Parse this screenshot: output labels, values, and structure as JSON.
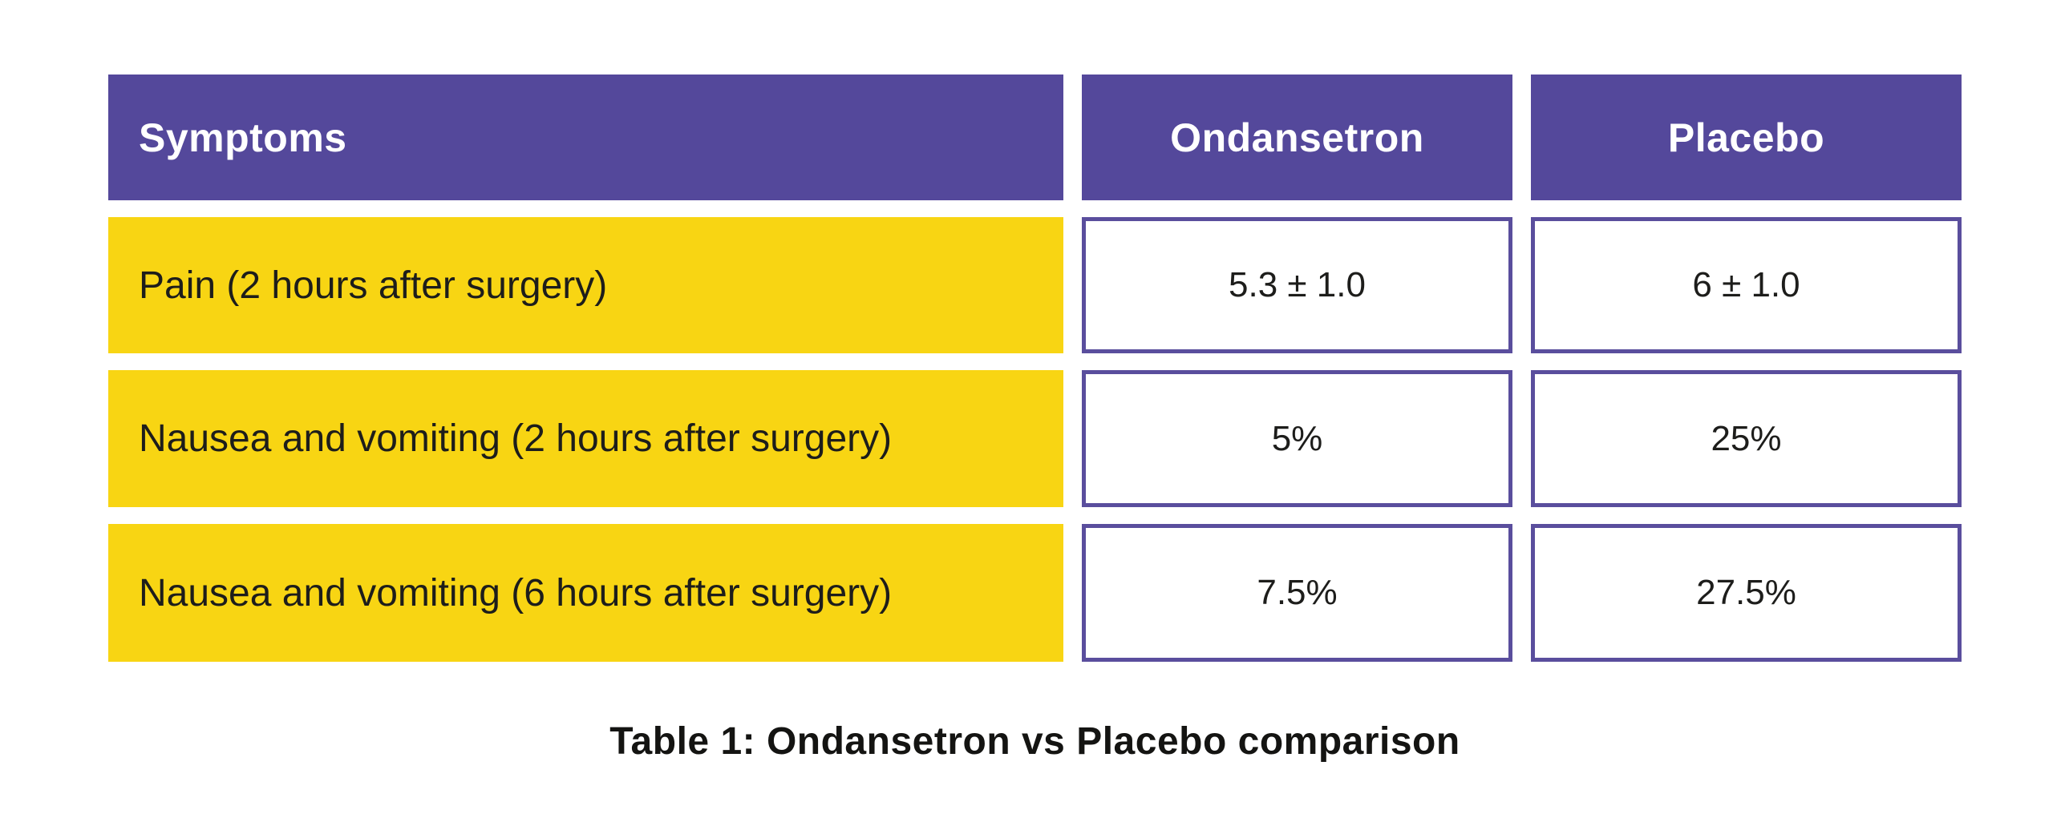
{
  "chart_data": {
    "type": "table",
    "title": "Table 1: Ondansetron vs Placebo comparison",
    "columns": [
      "Symptoms",
      "Ondansetron",
      "Placebo"
    ],
    "rows": [
      [
        "Pain (2 hours after surgery)",
        "5.3 ± 1.0",
        "6 ± 1.0"
      ],
      [
        "Nausea and vomiting (2 hours after surgery)",
        "5%",
        "25%"
      ],
      [
        "Nausea and vomiting (6 hours after surgery)",
        "7.5%",
        "27.5%"
      ]
    ],
    "layout": {
      "header_position": "top",
      "symptom_column_alignment": "left",
      "value_column_alignment": "center",
      "caption_position": "bottom-center"
    }
  },
  "colors": {
    "header_bg": "#54489B",
    "row_bg": "#F8D513",
    "cell_border": "#5A4E9D",
    "header_text": "#FFFFFF",
    "body_text": "#1D1D1B",
    "caption_text": "#141412",
    "page_bg": "#FFFFFF"
  }
}
